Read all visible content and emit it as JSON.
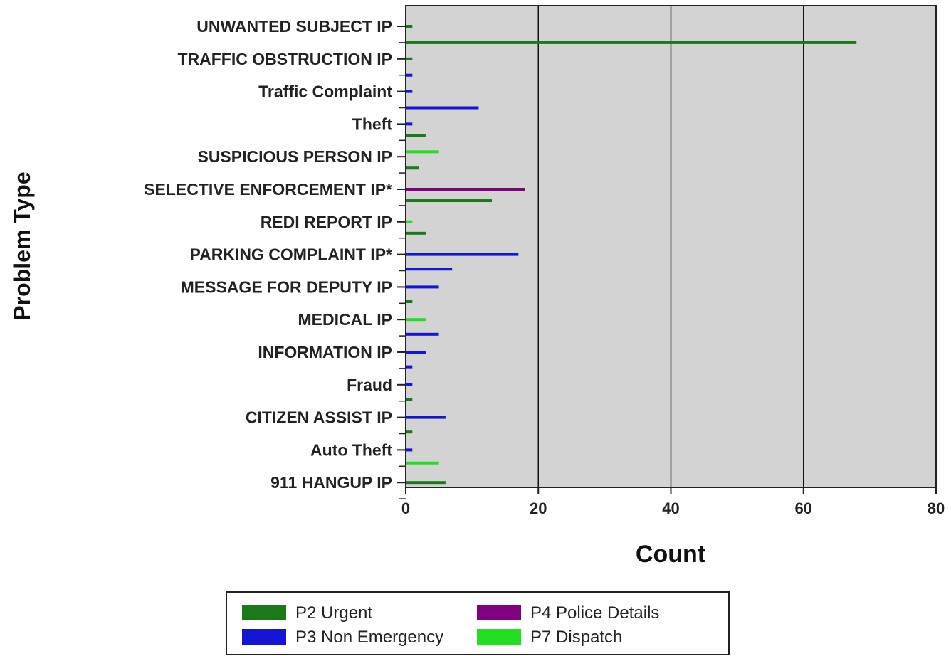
{
  "chart_data": {
    "type": "bar",
    "orientation": "horizontal",
    "title": "",
    "xlabel": "Count",
    "ylabel": "Problem Type",
    "xlim": [
      0,
      80
    ],
    "xticks": [
      0,
      20,
      40,
      60,
      80
    ],
    "grid": "vertical",
    "legend_position": "bottom",
    "categories": [
      "UNWANTED SUBJECT IP",
      "TRAFFIC OBSTRUCTION IP",
      "Traffic Complaint",
      "Theft",
      "SUSPICIOUS PERSON IP",
      "SELECTIVE ENFORCEMENT IP*",
      "REDI REPORT IP",
      "PARKING COMPLAINT IP*",
      "MESSAGE FOR DEPUTY IP",
      "MEDICAL IP",
      "INFORMATION IP",
      "Fraud",
      "CITIZEN ASSIST IP",
      "Auto Theft",
      "911 HANGUP IP"
    ],
    "bars": [
      {
        "s": 3,
        "v": 1.5,
        "c": 0,
        "o": 1.5
      },
      {
        "s": 0,
        "v": 1,
        "c": 0,
        "o": 0
      },
      {
        "s": 0,
        "v": 68,
        "c": 0,
        "o": -0.5
      },
      {
        "s": 0,
        "v": 1,
        "c": 1,
        "o": 0
      },
      {
        "s": 1,
        "v": 1,
        "c": 1,
        "o": -0.5
      },
      {
        "s": 1,
        "v": 1,
        "c": 2,
        "o": 0
      },
      {
        "s": 1,
        "v": 11,
        "c": 2,
        "o": -0.5
      },
      {
        "s": 1,
        "v": 1,
        "c": 3,
        "o": 0
      },
      {
        "s": 0,
        "v": 3,
        "c": 3,
        "o": -0.35
      },
      {
        "s": 3,
        "v": 5,
        "c": 4,
        "o": 0.15
      },
      {
        "s": 0,
        "v": 2,
        "c": 4,
        "o": -0.35
      },
      {
        "s": 2,
        "v": 18,
        "c": 5,
        "o": 0
      },
      {
        "s": 0,
        "v": 13,
        "c": 5,
        "o": -0.35
      },
      {
        "s": 3,
        "v": 1,
        "c": 6,
        "o": 0
      },
      {
        "s": 0,
        "v": 3,
        "c": 6,
        "o": -0.35
      },
      {
        "s": 1,
        "v": 17,
        "c": 7,
        "o": 0
      },
      {
        "s": 1,
        "v": 7,
        "c": 7,
        "o": -0.45
      },
      {
        "s": 1,
        "v": 5,
        "c": 8,
        "o": 0
      },
      {
        "s": 0,
        "v": 1,
        "c": 8,
        "o": -0.45
      },
      {
        "s": 3,
        "v": 3,
        "c": 9,
        "o": 0
      },
      {
        "s": 1,
        "v": 5,
        "c": 9,
        "o": -0.45
      },
      {
        "s": 1,
        "v": 3,
        "c": 10,
        "o": 0
      },
      {
        "s": 1,
        "v": 1,
        "c": 10,
        "o": -0.45
      },
      {
        "s": 1,
        "v": 1,
        "c": 11,
        "o": 0
      },
      {
        "s": 0,
        "v": 1,
        "c": 11,
        "o": -0.45
      },
      {
        "s": 1,
        "v": 6,
        "c": 12,
        "o": 0
      },
      {
        "s": 0,
        "v": 1,
        "c": 12,
        "o": -0.45
      },
      {
        "s": 1,
        "v": 1,
        "c": 13,
        "o": 0
      },
      {
        "s": 3,
        "v": 5,
        "c": 13,
        "o": -0.4
      },
      {
        "s": 0,
        "v": 6,
        "c": 14,
        "o": 0
      }
    ],
    "series": [
      {
        "name": "P2 Urgent",
        "color": "#1a7a1a"
      },
      {
        "name": "P3 Non Emergency",
        "color": "#1515d6"
      },
      {
        "name": "P4 Police Details",
        "color": "#800080"
      },
      {
        "name": "P7 Dispatch",
        "color": "#22dd22"
      }
    ],
    "colors": {
      "plot_bg": "#d3d3d3",
      "grid": "#111111"
    }
  }
}
